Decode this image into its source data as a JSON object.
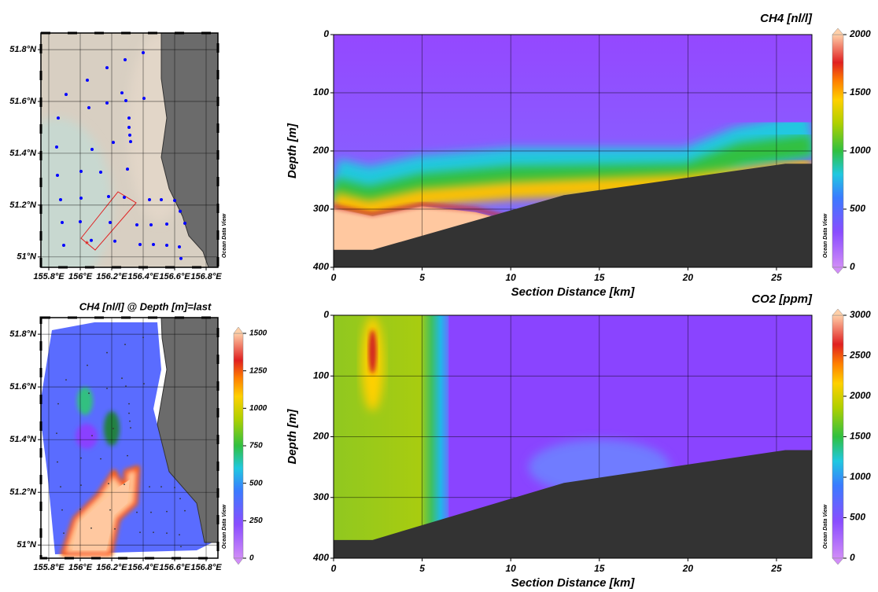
{
  "chart_data": [
    {
      "type": "map",
      "color": "#0000ff",
      "x": [
        156.4,
        156.285,
        156.17,
        156.045,
        155.91,
        156.265,
        156.055,
        156.17,
        156.29,
        156.405,
        155.86,
        156.31,
        156.31,
        156.315,
        156.32,
        156.21,
        156.075,
        155.85,
        156.3,
        156.005,
        156.13,
        155.855,
        156.18,
        156.28,
        156.005,
        155.875,
        156.44,
        156.515,
        156.6,
        156.635,
        156.665,
        156.0,
        155.885,
        156.19,
        156.36,
        156.45,
        156.55,
        156.07,
        156.22,
        156.38,
        156.465,
        156.55,
        156.63,
        156.64,
        155.895
      ],
      "y": [
        51.788,
        51.761,
        51.73,
        51.682,
        51.627,
        51.633,
        51.576,
        51.594,
        51.603,
        51.612,
        51.536,
        51.536,
        51.5,
        51.47,
        51.445,
        51.442,
        51.415,
        51.424,
        51.339,
        51.33,
        51.327,
        51.315,
        51.233,
        51.23,
        51.227,
        51.221,
        51.221,
        51.221,
        51.218,
        51.176,
        51.13,
        51.136,
        51.133,
        51.133,
        51.124,
        51.124,
        51.127,
        51.064,
        51.061,
        51.048,
        51.048,
        51.045,
        51.039,
        50.994,
        51.045
      ],
      "xlim": [
        155.75,
        156.875
      ],
      "ylim": [
        50.96,
        51.864
      ],
      "xticks": [
        {
          "value": 155.8,
          "label": "155.8°E"
        },
        {
          "value": 156,
          "label": "156°E"
        },
        {
          "value": 156.2,
          "label": "156.2°E"
        },
        {
          "value": 156.4,
          "label": "156.4°E"
        },
        {
          "value": 156.6,
          "label": "156.6°E"
        },
        {
          "value": 156.8,
          "label": "156.8°E"
        }
      ],
      "yticks": [
        {
          "value": 51,
          "label": "51°N"
        },
        {
          "value": 51.2,
          "label": "51.2°N"
        },
        {
          "value": 51.4,
          "label": "51.4°N"
        },
        {
          "value": 51.6,
          "label": "51.6°N"
        },
        {
          "value": 51.8,
          "label": "51.8°N"
        }
      ],
      "grid": true,
      "watermark": "Ocean Data View"
    },
    {
      "type": "map",
      "title": "CH4 [nl/l] @ Depth [m]=last",
      "color": "#333333",
      "x": [
        156.4,
        156.285,
        156.17,
        156.045,
        155.91,
        156.265,
        156.055,
        156.17,
        156.29,
        156.405,
        155.86,
        156.31,
        156.31,
        156.315,
        156.32,
        156.21,
        156.075,
        155.85,
        156.3,
        156.005,
        156.13,
        155.855,
        156.18,
        156.28,
        156.005,
        155.875,
        156.44,
        156.515,
        156.6,
        156.635,
        156.665,
        156.0,
        155.885,
        156.19,
        156.36,
        156.45,
        156.55,
        156.07,
        156.22,
        156.38,
        156.465,
        156.55,
        156.63,
        156.64,
        155.895
      ],
      "y": [
        51.788,
        51.761,
        51.73,
        51.682,
        51.627,
        51.633,
        51.576,
        51.594,
        51.603,
        51.612,
        51.536,
        51.536,
        51.5,
        51.47,
        51.445,
        51.442,
        51.415,
        51.424,
        51.339,
        51.33,
        51.327,
        51.315,
        51.233,
        51.23,
        51.227,
        51.221,
        51.221,
        51.221,
        51.218,
        51.176,
        51.13,
        51.136,
        51.133,
        51.133,
        51.124,
        51.124,
        51.127,
        51.064,
        51.061,
        51.048,
        51.048,
        51.045,
        51.039,
        50.994,
        51.045
      ],
      "xlim": [
        155.75,
        156.875
      ],
      "ylim": [
        50.95,
        51.863
      ],
      "xticks": [
        {
          "value": 155.8,
          "label": "155.8°E"
        },
        {
          "value": 156,
          "label": "156°E"
        },
        {
          "value": 156.2,
          "label": "156.2°E"
        },
        {
          "value": 156.4,
          "label": "156.4°E"
        },
        {
          "value": 156.6,
          "label": "156.6°E"
        },
        {
          "value": 156.8,
          "label": "156.8°E"
        }
      ],
      "yticks": [
        {
          "value": 51,
          "label": "51°N"
        },
        {
          "value": 51.2,
          "label": "51.2°N"
        },
        {
          "value": 51.4,
          "label": "51.4°N"
        },
        {
          "value": 51.6,
          "label": "51.6°N"
        },
        {
          "value": 51.8,
          "label": "51.8°N"
        }
      ],
      "grid": true,
      "watermark": "Ocean Data View",
      "colorbar": {
        "lim": [
          0,
          1500
        ],
        "ticks": [
          0,
          250,
          500,
          750,
          1000,
          1250,
          1500
        ]
      }
    },
    {
      "type": "section",
      "title": "CH4 [nl/l]",
      "xlabel": "Section Distance [km]",
      "ylabel": "Depth [m]",
      "xlim": [
        0,
        27
      ],
      "ylim": [
        400,
        0
      ],
      "xticks": [
        0,
        5,
        10,
        15,
        20,
        25
      ],
      "yticks": [
        0,
        100,
        200,
        300,
        400
      ],
      "grid": true,
      "watermark": "Ocean Data View",
      "bathymetry": {
        "x": [
          0,
          2.2,
          13,
          25.5,
          27
        ],
        "values": [
          370,
          370,
          276,
          222,
          222
        ]
      },
      "colorbar": {
        "lim": [
          0,
          2000
        ],
        "ticks": [
          0,
          500,
          1000,
          1500,
          2000
        ]
      }
    },
    {
      "type": "section",
      "title": "CO2 [ppm]",
      "xlabel": "Section Distance [km]",
      "ylabel": "Depth [m]",
      "xlim": [
        0,
        27
      ],
      "ylim": [
        400,
        0
      ],
      "xticks": [
        0,
        5,
        10,
        15,
        20,
        25
      ],
      "yticks": [
        0,
        100,
        200,
        300,
        400
      ],
      "grid": true,
      "watermark": "Ocean Data View",
      "bathymetry": {
        "x": [
          0,
          2.2,
          13,
          25.5,
          27
        ],
        "values": [
          370,
          370,
          276,
          222,
          222
        ]
      },
      "colorbar": {
        "lim": [
          0,
          3000
        ],
        "ticks": [
          0,
          500,
          1000,
          1500,
          2000,
          2500,
          3000
        ]
      }
    }
  ]
}
